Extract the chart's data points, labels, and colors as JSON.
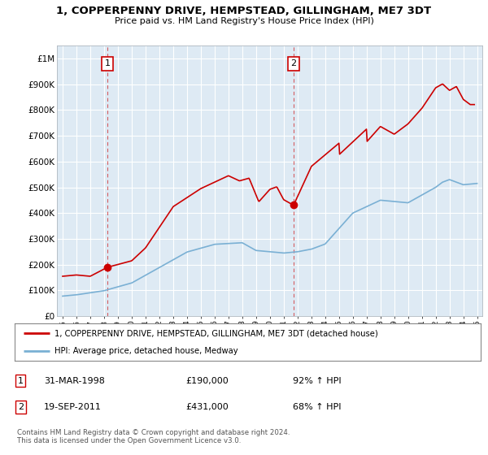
{
  "title": "1, COPPERPENNY DRIVE, HEMPSTEAD, GILLINGHAM, ME7 3DT",
  "subtitle": "Price paid vs. HM Land Registry's House Price Index (HPI)",
  "ylim": [
    0,
    1050000
  ],
  "yticks": [
    0,
    100000,
    200000,
    300000,
    400000,
    500000,
    600000,
    700000,
    800000,
    900000,
    1000000
  ],
  "ytick_labels": [
    "£0",
    "£100K",
    "£200K",
    "£300K",
    "£400K",
    "£500K",
    "£600K",
    "£700K",
    "£800K",
    "£900K",
    "£1M"
  ],
  "x_start_year": 1995,
  "x_end_year": 2025,
  "sale1_date": 1998.25,
  "sale1_price": 190000,
  "sale2_date": 2011.72,
  "sale2_price": 431000,
  "red_line_color": "#cc0000",
  "blue_line_color": "#7ab0d4",
  "plot_bg_color": "#deeaf4",
  "grid_color": "#ffffff",
  "legend_line1": "1, COPPERPENNY DRIVE, HEMPSTEAD, GILLINGHAM, ME7 3DT (detached house)",
  "legend_line2": "HPI: Average price, detached house, Medway",
  "footer": "Contains HM Land Registry data © Crown copyright and database right 2024.\nThis data is licensed under the Open Government Licence v3.0."
}
